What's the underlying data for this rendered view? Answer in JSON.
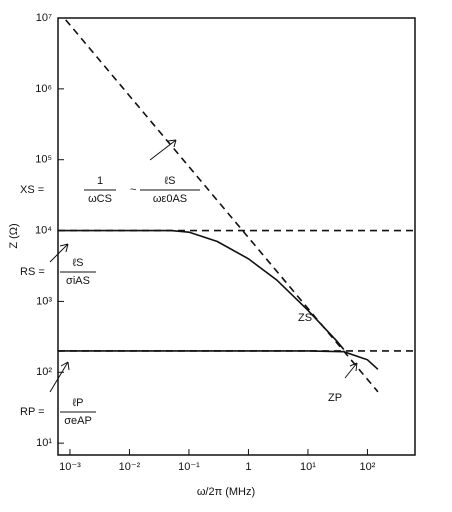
{
  "chart_data": {
    "type": "line",
    "log_x": true,
    "log_y": true,
    "xlabel": "ω/2π (MHz)",
    "ylabel": "Z (Ω)",
    "color": "#111111",
    "xlim": [
      0.00063,
      630
    ],
    "ylim": [
      6.8,
      10000000
    ],
    "xticks": [
      {
        "value": 0.001,
        "label": "10⁻³"
      },
      {
        "value": 0.01,
        "label": "10⁻²"
      },
      {
        "value": 0.1,
        "label": "10⁻¹"
      },
      1,
      {
        "value": 10,
        "label": "10¹"
      },
      {
        "value": 100,
        "label": "10²"
      }
    ],
    "yticks": [
      {
        "value": 10,
        "label": "10¹"
      },
      {
        "value": 100,
        "label": "10²"
      },
      {
        "value": 1000,
        "label": "10³"
      },
      {
        "value": 10000,
        "label": "10⁴"
      },
      {
        "value": 100000,
        "label": "10⁵"
      },
      {
        "value": 1000000,
        "label": "10⁶"
      },
      {
        "value": 10000000,
        "label": "10⁷"
      }
    ],
    "lines": [
      {
        "style": "dashed",
        "x": [
          0.00063,
          150
        ],
        "values": [
          12700000,
          53
        ]
      },
      {
        "style": "dashed",
        "x": [
          0.00063,
          630
        ],
        "values": [
          10000,
          10000
        ]
      },
      {
        "style": "dashed",
        "x": [
          0.00063,
          630
        ],
        "values": [
          200,
          200
        ]
      },
      {
        "style": "solid",
        "x": [
          0.00063,
          0.05,
          0.1,
          0.3,
          1,
          3,
          10,
          30,
          40
        ],
        "values": [
          10000,
          10000,
          9500,
          7000,
          4000,
          2000,
          750,
          280,
          210
        ]
      },
      {
        "style": "solid",
        "x": [
          0.00063,
          10,
          40,
          100,
          150
        ],
        "values": [
          200,
          200,
          195,
          150,
          110
        ]
      }
    ],
    "annotations": {
      "xs": {
        "left": "XS =",
        "num1": "1",
        "den1": "ωCS",
        "sep": "~",
        "num2": "ℓS",
        "den2": "ωε0AS"
      },
      "rs": {
        "left": "RS =",
        "num": "ℓS",
        "den": "σiAS"
      },
      "rp": {
        "left": "RP =",
        "num": "ℓP",
        "den": "σeAP"
      },
      "zs": "ZS",
      "zp": "ZP"
    }
  }
}
